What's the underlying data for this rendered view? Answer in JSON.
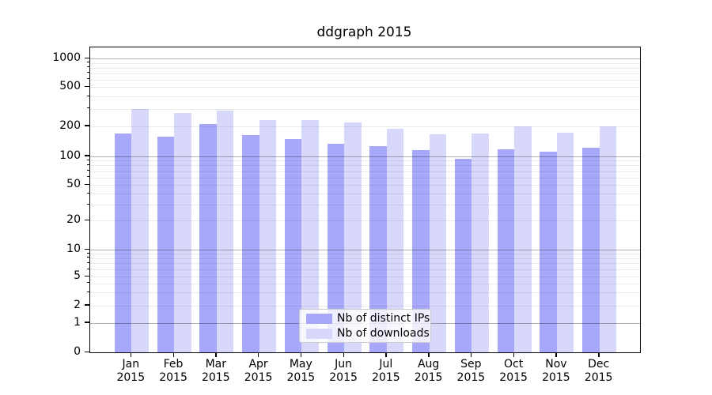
{
  "figure": {
    "title": "ddgraph 2015"
  },
  "chart_data": {
    "type": "bar",
    "title": "ddgraph 2015",
    "xlabel": "",
    "ylabel": "",
    "yscale": "log (1-2-5 labeled ticks, 0 baseline)",
    "yticks": [
      0,
      1,
      2,
      5,
      10,
      20,
      50,
      100,
      200,
      500,
      1000
    ],
    "ylim": [
      0,
      1300
    ],
    "grid": "both (major gray lines at powers of 10, faint minor lines)",
    "legend_position": "lower center",
    "categories": [
      "Jan 2015",
      "Feb 2015",
      "Mar 2015",
      "Apr 2015",
      "May 2015",
      "Jun 2015",
      "Jul 2015",
      "Aug 2015",
      "Sep 2015",
      "Oct 2015",
      "Nov 2015",
      "Dec 2015"
    ],
    "series": [
      {
        "name": "Nb of distinct IPs",
        "color": "#a8a8fa",
        "values": [
          170,
          157,
          210,
          162,
          148,
          133,
          126,
          115,
          94,
          117,
          110,
          122
        ]
      },
      {
        "name": "Nb of downloads",
        "color": "#d8d8fb",
        "values": [
          300,
          272,
          287,
          230,
          231,
          217,
          189,
          167,
          170,
          199,
          172,
          199
        ]
      }
    ]
  }
}
